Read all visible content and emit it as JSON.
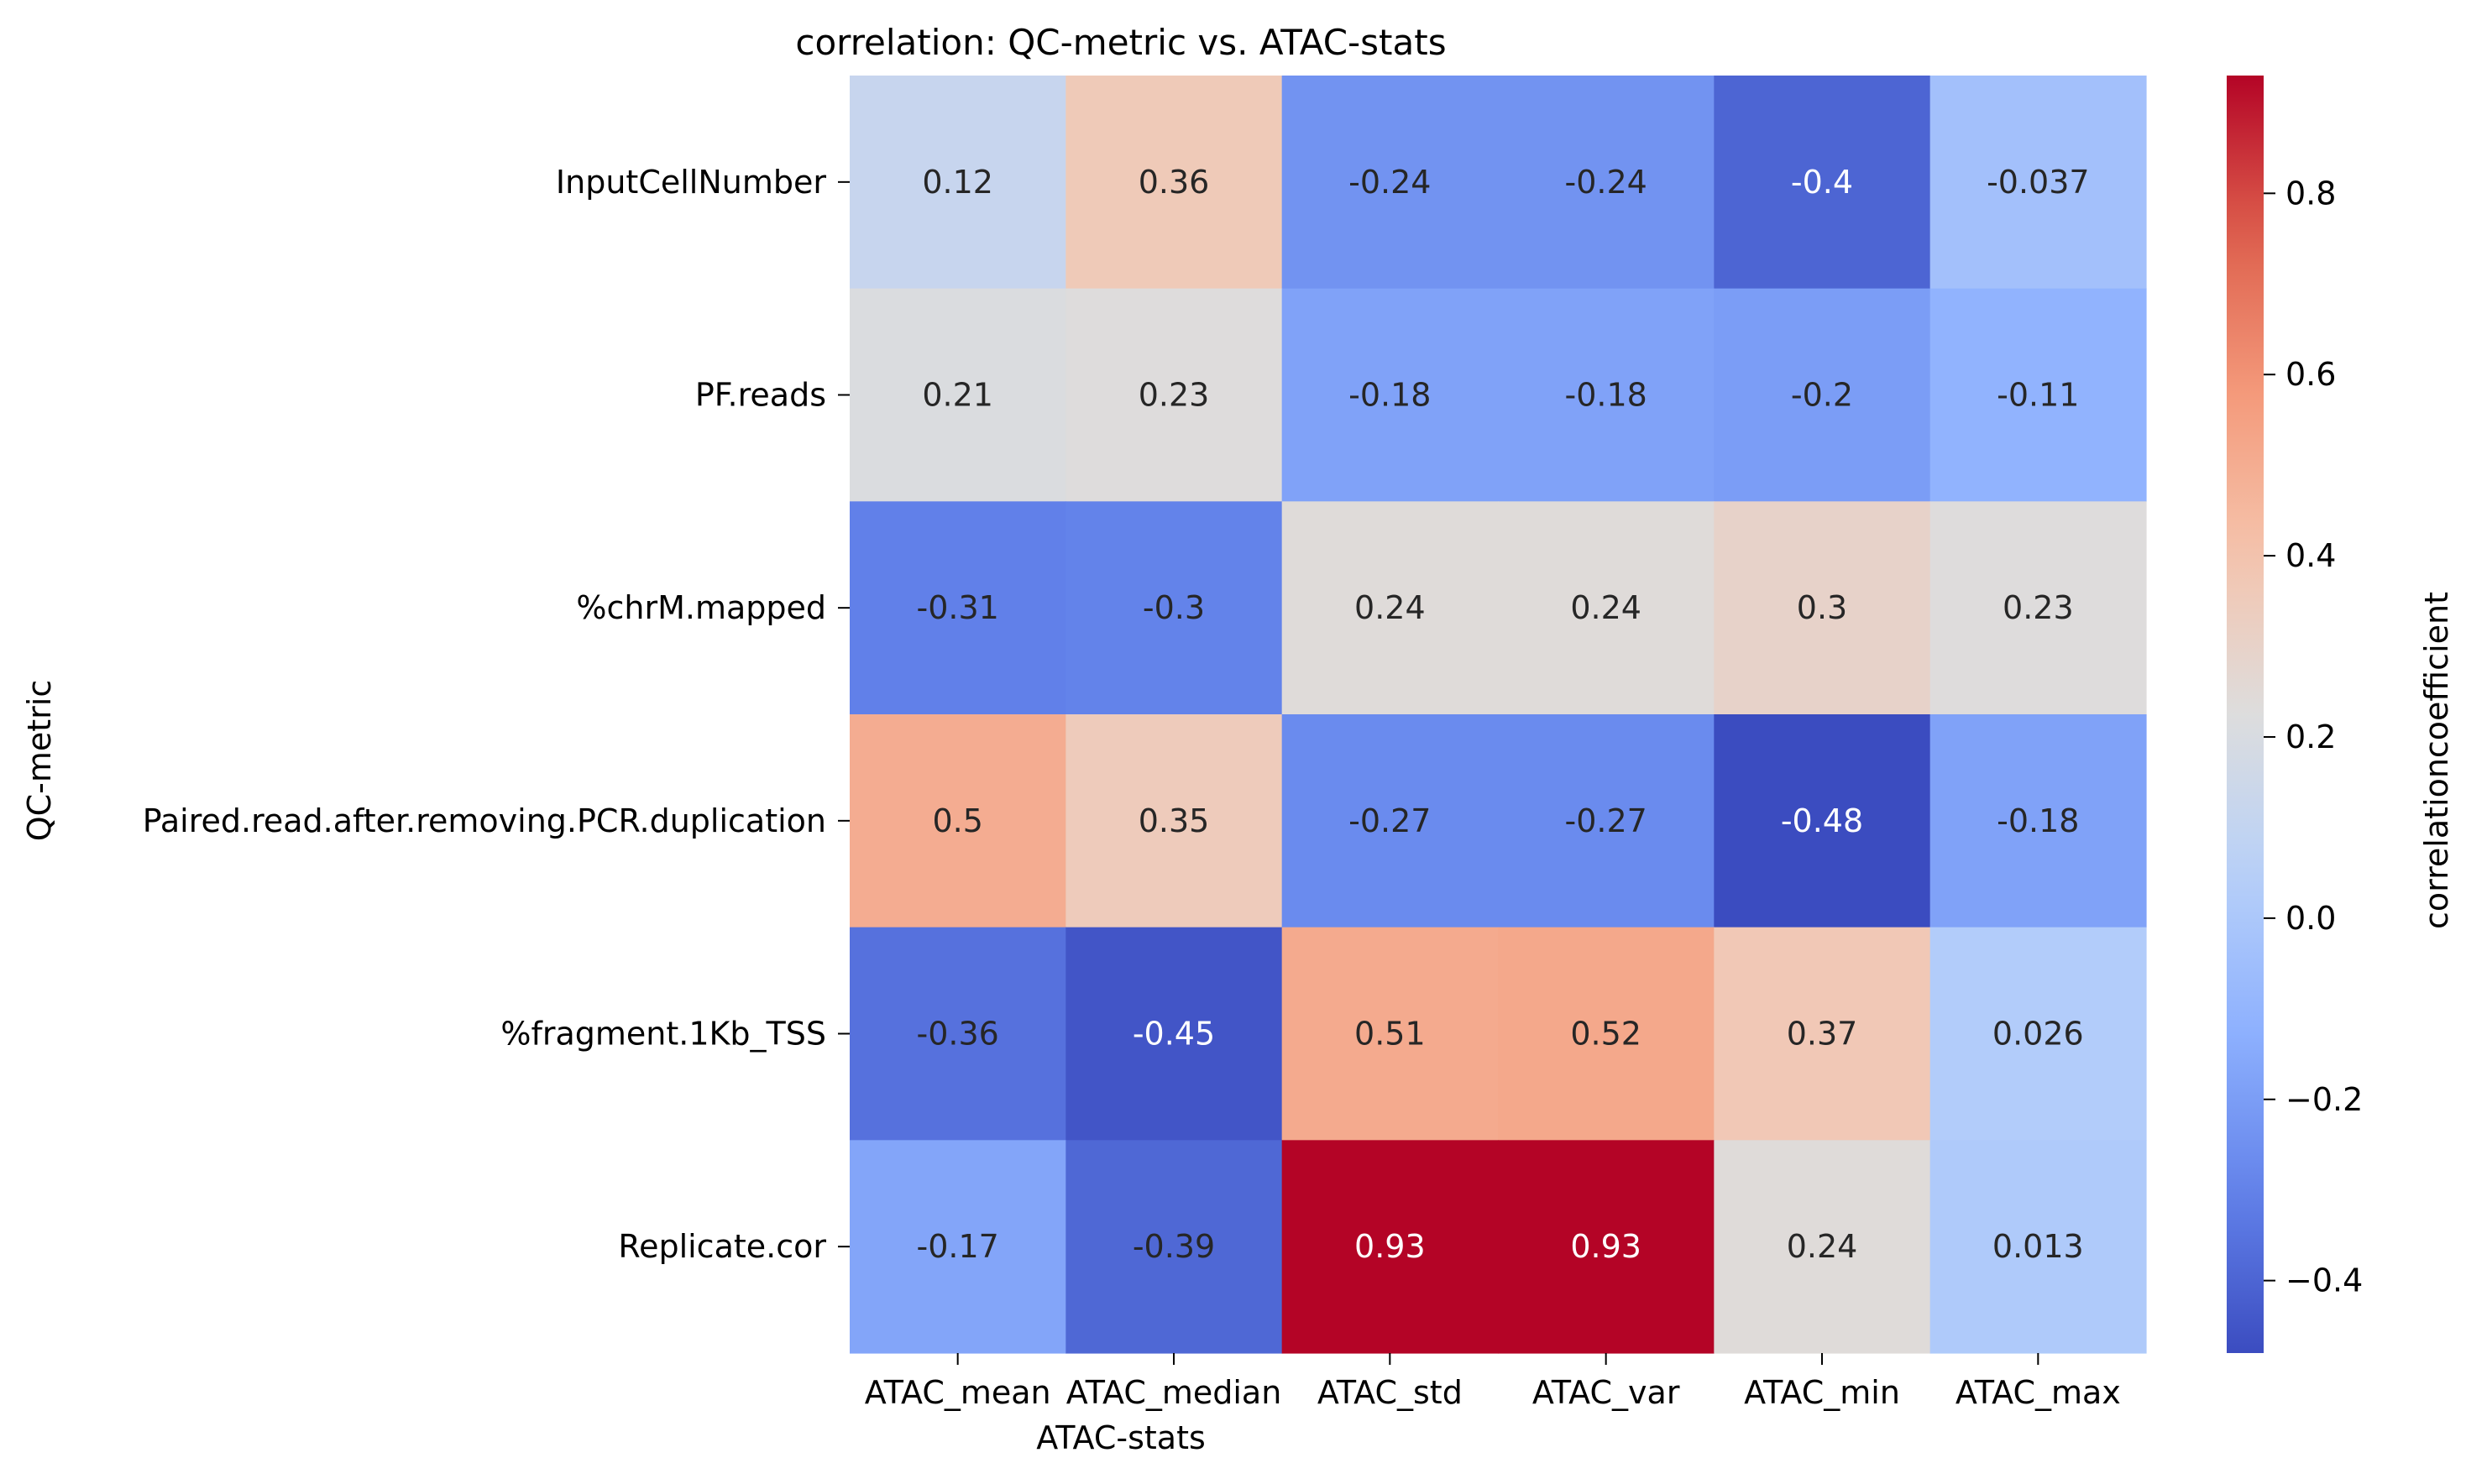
{
  "chart_data": {
    "type": "heatmap",
    "title": "correlation: QC-metric vs. ATAC-stats",
    "xlabel": "ATAC-stats",
    "ylabel": "QC-metric",
    "colorbar_label": "correlationcoefficient",
    "colormap": "coolwarm",
    "vmin": -0.48,
    "vmax": 0.93,
    "colorbar_ticks": [
      -0.4,
      -0.2,
      0.0,
      0.2,
      0.4,
      0.6,
      0.8
    ],
    "colorbar_tick_labels": [
      "−0.4",
      "−0.2",
      "0.0",
      "0.2",
      "0.4",
      "0.6",
      "0.8"
    ],
    "x_categories": [
      "ATAC_mean",
      "ATAC_median",
      "ATAC_std",
      "ATAC_var",
      "ATAC_min",
      "ATAC_max"
    ],
    "y_categories": [
      "InputCellNumber",
      "PF.reads",
      "%chrM.mapped",
      "Paired.read.after.removing.PCR.duplication",
      "%fragment.1Kb_TSS",
      "Replicate.cor"
    ],
    "values": [
      [
        0.12,
        0.36,
        -0.24,
        -0.24,
        -0.4,
        -0.037
      ],
      [
        0.21,
        0.23,
        -0.18,
        -0.18,
        -0.2,
        -0.11
      ],
      [
        -0.31,
        -0.3,
        0.24,
        0.24,
        0.3,
        0.23
      ],
      [
        0.5,
        0.35,
        -0.27,
        -0.27,
        -0.48,
        -0.18
      ],
      [
        -0.36,
        -0.45,
        0.51,
        0.52,
        0.37,
        0.026
      ],
      [
        -0.17,
        -0.39,
        0.93,
        0.93,
        0.24,
        0.013
      ]
    ],
    "cell_labels": [
      [
        "0.12",
        "0.36",
        "-0.24",
        "-0.24",
        "-0.4",
        "-0.037"
      ],
      [
        "0.21",
        "0.23",
        "-0.18",
        "-0.18",
        "-0.2",
        "-0.11"
      ],
      [
        "-0.31",
        "-0.3",
        "0.24",
        "0.24",
        "0.3",
        "0.23"
      ],
      [
        "0.5",
        "0.35",
        "-0.27",
        "-0.27",
        "-0.48",
        "-0.18"
      ],
      [
        "-0.36",
        "-0.45",
        "0.51",
        "0.52",
        "0.37",
        "0.026"
      ],
      [
        "-0.17",
        "-0.39",
        "0.93",
        "0.93",
        "0.24",
        "0.013"
      ]
    ],
    "colors": {
      "dark_text": "#262626",
      "light_text": "#ffffff"
    }
  }
}
